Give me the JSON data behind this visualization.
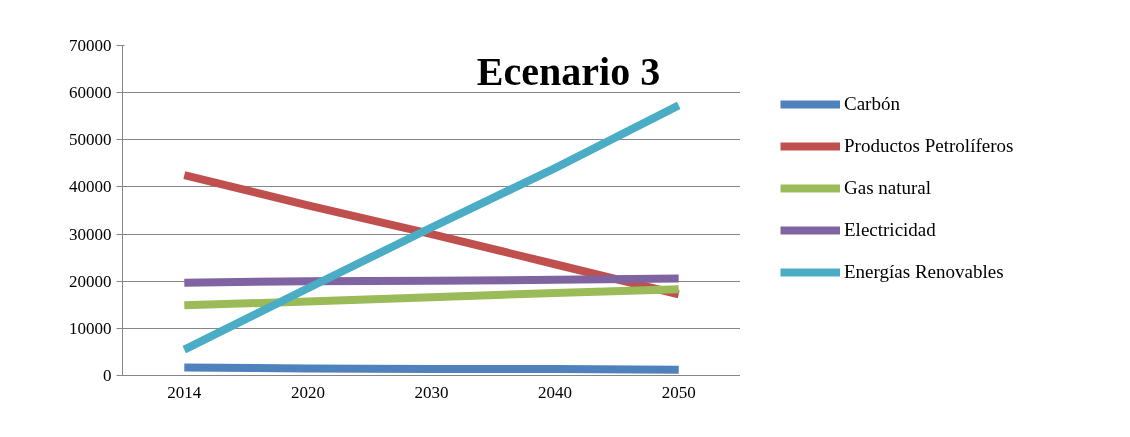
{
  "chart_data": {
    "type": "line",
    "title": "Ecenario 3",
    "categories": [
      "2014",
      "2020",
      "2030",
      "2040",
      "2050"
    ],
    "series": [
      {
        "name": "Carbón",
        "color": "#4f81bd",
        "values": [
          1700,
          1500,
          1400,
          1400,
          1200
        ]
      },
      {
        "name": "Productos Petrolíferos",
        "color": "#c0504d",
        "values": [
          42500,
          36100,
          30000,
          23600,
          17200
        ]
      },
      {
        "name": "Gas natural",
        "color": "#9bbb59",
        "values": [
          14900,
          15700,
          16600,
          17500,
          18300
        ]
      },
      {
        "name": "Electricidad",
        "color": "#8064a2",
        "values": [
          19700,
          20000,
          20100,
          20300,
          20600
        ]
      },
      {
        "name": "Energías Renovables",
        "color": "#4bacc6",
        "values": [
          5500,
          18500,
          31400,
          44000,
          57300
        ]
      }
    ],
    "ylim": [
      0,
      70000
    ],
    "yticks": [
      0,
      10000,
      20000,
      30000,
      40000,
      50000,
      60000,
      70000
    ],
    "grid": "y",
    "legend": "right",
    "marker": "none",
    "line_style": "solid"
  }
}
